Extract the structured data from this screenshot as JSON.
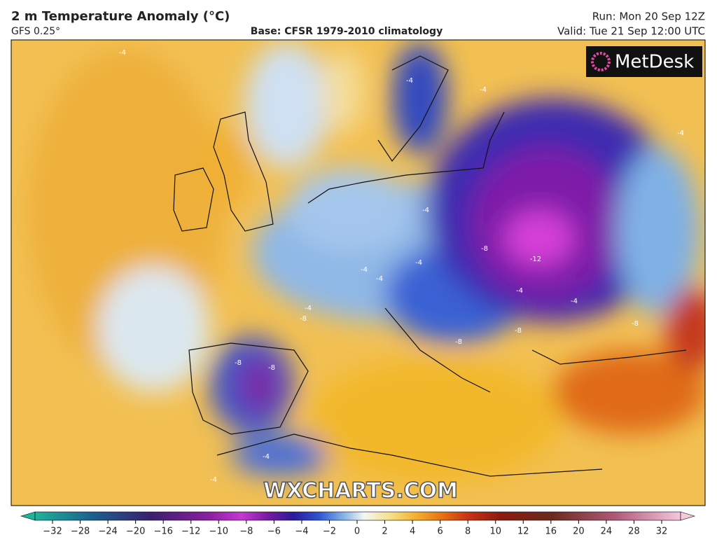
{
  "header": {
    "title": "2 m Temperature Anomaly (°C)",
    "model": "GFS 0.25°",
    "base": "Base: CFSR 1979-2010 climatology",
    "run": "Run: Mon 20 Sep 12Z",
    "valid": "Valid: Tue 21 Sep 12:00 UTC"
  },
  "logo": "MetDesk",
  "watermark": "WXCHARTS.COM",
  "map": {
    "contour_labels": [
      "-4",
      "-4",
      "-4",
      "-8",
      "-12",
      "-4",
      "-4",
      "-4",
      "-4",
      "-8",
      "-8",
      "-8",
      "-8",
      "-8",
      "-8",
      "-4",
      "-4",
      "-4",
      "-4",
      "-4",
      "-4"
    ]
  },
  "colorbar": {
    "ticks": [
      "−32",
      "−28",
      "−24",
      "−20",
      "−16",
      "−12",
      "−10",
      "−8",
      "−6",
      "−4",
      "−2",
      "0",
      "2",
      "4",
      "6",
      "8",
      "10",
      "12",
      "16",
      "20",
      "24",
      "28",
      "32"
    ]
  }
}
